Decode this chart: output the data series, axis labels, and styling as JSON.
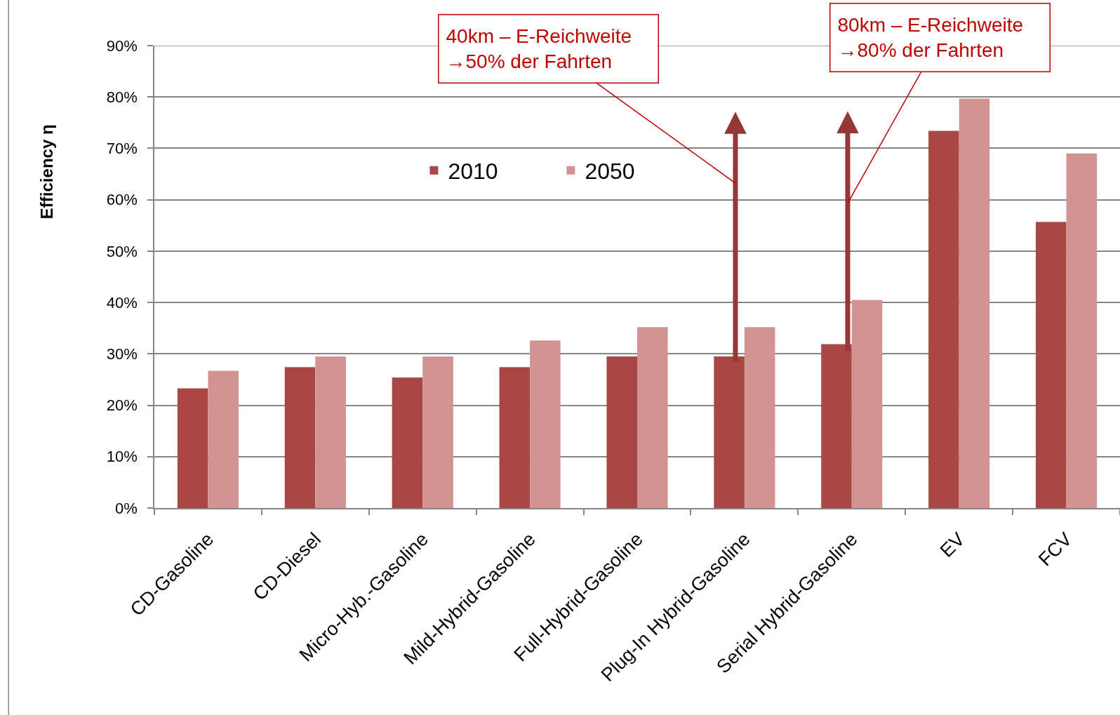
{
  "chart_data": {
    "type": "bar",
    "ylabel": "Efficiency η",
    "categories": [
      "CD-Gasoline",
      "CD-Diesel",
      "Micro-Hyb.-Gasoline",
      "Mild-Hybrid-Gasoline",
      "Full-Hybrid-Gasoline",
      "Plug-In Hybrid-Gasoline",
      "Serial Hybrid-Gasoline",
      "EV",
      "FCV"
    ],
    "series": [
      {
        "name": "2010",
        "color": "#a94745",
        "values": [
          23.3,
          27.4,
          25.4,
          27.4,
          29.5,
          29.5,
          31.9,
          73.4,
          55.7
        ]
      },
      {
        "name": "2050",
        "color": "#d29393",
        "values": [
          26.7,
          29.5,
          29.5,
          32.6,
          35.2,
          35.2,
          40.5,
          79.7,
          69.0
        ]
      }
    ],
    "ylim": [
      0,
      90
    ],
    "yticks": [
      {
        "value": 0,
        "label": "0%"
      },
      {
        "value": 10,
        "label": "10%"
      },
      {
        "value": 20,
        "label": "20%"
      },
      {
        "value": 30,
        "label": "30%"
      },
      {
        "value": 40,
        "label": "40%"
      },
      {
        "value": 50,
        "label": "50%"
      },
      {
        "value": 60,
        "label": "60%"
      },
      {
        "value": 70,
        "label": "70%"
      },
      {
        "value": 80,
        "label": "80%"
      },
      {
        "value": 90,
        "label": "90%"
      }
    ],
    "grid": "y",
    "legend": "top",
    "annotations": [
      "40km – E-Reichweite\n→50% der Fahrten",
      "80km – E-Reichweite\n→80% der Fahrten"
    ]
  }
}
